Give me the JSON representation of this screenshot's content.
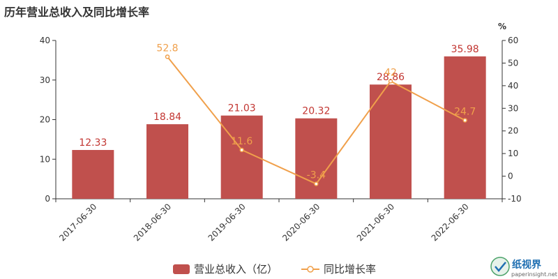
{
  "title": "历年营业总收入及同比增长率",
  "watermark": {
    "brand": "纸视界",
    "site": "paperinsight.net"
  },
  "colors": {
    "bar": "#c0504d",
    "line": "#f0a04b",
    "axis": "#333333",
    "grid": "#e6e6e6"
  },
  "chart_data": {
    "type": "bar",
    "categories": [
      "2017-06-30",
      "2018-06-30",
      "2019-06-30",
      "2020-06-30",
      "2021-06-30",
      "2022-06-30"
    ],
    "series": [
      {
        "name": "营业总收入（亿）",
        "type": "bar",
        "axis": "left",
        "values": [
          12.33,
          18.84,
          21.03,
          20.32,
          28.86,
          35.98
        ]
      },
      {
        "name": "同比增长率",
        "type": "line",
        "axis": "right",
        "values": [
          null,
          52.8,
          11.6,
          -3.4,
          42,
          24.7
        ]
      }
    ],
    "y_left": {
      "min": 0,
      "max": 40,
      "ticks": [
        0,
        10,
        20,
        30,
        40
      ]
    },
    "y_right": {
      "label": "%",
      "min": -10,
      "max": 60,
      "ticks": [
        -10,
        0,
        10,
        20,
        30,
        40,
        50,
        60
      ]
    },
    "grid": false,
    "legend_position": "bottom"
  }
}
